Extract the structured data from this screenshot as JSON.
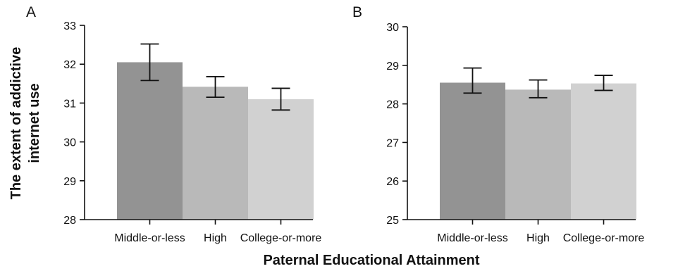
{
  "figure": {
    "xlabel": "Paternal Educational Attainment",
    "ylabel_line1": "The extent of addictive",
    "ylabel_line2": "internet use"
  },
  "chart_data": [
    {
      "type": "bar",
      "panel": "A",
      "categories": [
        "Middle-or-less",
        "High",
        "College-or-more"
      ],
      "values": [
        32.05,
        31.42,
        31.1
      ],
      "error_low": [
        31.58,
        31.15,
        30.82
      ],
      "error_high": [
        32.52,
        31.68,
        31.38
      ],
      "ylim": [
        28,
        33
      ],
      "yticks": [
        28,
        29,
        30,
        31,
        32,
        33
      ],
      "colors": [
        "#939393",
        "#b9b9b9",
        "#d1d1d1"
      ],
      "grid": false,
      "xlabel": "Paternal Educational Attainment",
      "ylabel": "The extent of addictive internet use"
    },
    {
      "type": "bar",
      "panel": "B",
      "categories": [
        "Middle-or-less",
        "High",
        "College-or-more"
      ],
      "values": [
        28.55,
        28.37,
        28.53
      ],
      "error_low": [
        28.28,
        28.16,
        28.35
      ],
      "error_high": [
        28.93,
        28.62,
        28.74
      ],
      "ylim": [
        25,
        30
      ],
      "yticks": [
        25,
        26,
        27,
        28,
        29,
        30
      ],
      "colors": [
        "#939393",
        "#b9b9b9",
        "#d1d1d1"
      ],
      "grid": false,
      "xlabel": "Paternal Educational Attainment",
      "ylabel": ""
    }
  ]
}
